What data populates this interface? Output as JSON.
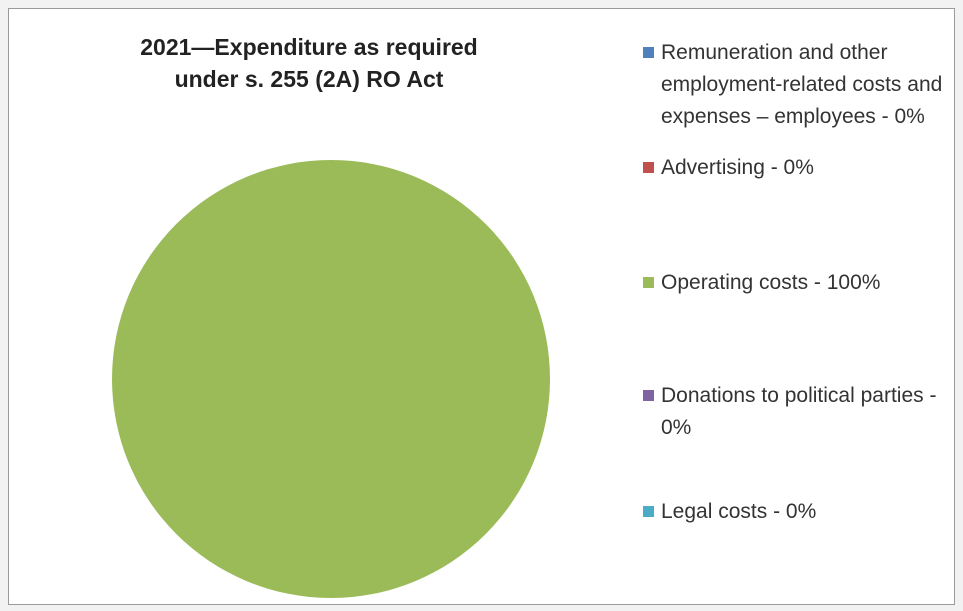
{
  "chart_data": {
    "type": "pie",
    "title": "2021—Expenditure as required\nunder s. 255 (2A) RO Act",
    "categories": [
      "Remuneration and other employment-related costs and expenses – employees",
      "Advertising",
      "Operating costs",
      "Donations to political parties",
      "Legal costs"
    ],
    "values": [
      0,
      0,
      100,
      0,
      0
    ],
    "legend_labels": [
      "Remuneration and other employment-related costs and expenses – employees - 0%",
      "Advertising - 0%",
      "Operating costs - 100%",
      "Donations to political parties - 0%",
      "Legal costs - 0%"
    ],
    "colors": [
      "#4f81bd",
      "#c0504d",
      "#9bbb59",
      "#8064a2",
      "#4bacc6"
    ],
    "legend_placement": "right"
  }
}
